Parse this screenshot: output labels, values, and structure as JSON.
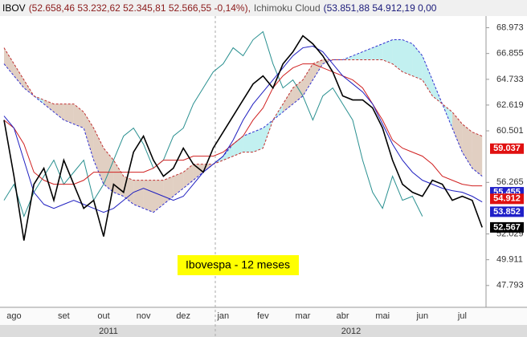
{
  "chart_data": {
    "type": "line",
    "header": {
      "symbol": "IBOV",
      "ohlc": "(52.658,46  53.232,62  52.345,81  52.566,55  -0,14%),",
      "study": "Ichimoku Cloud",
      "study_values": "(53.851,88  54.912,19  0,00"
    },
    "annotation": "Ibovespa - 12 meses",
    "years": [
      "2011",
      "2012"
    ],
    "categories": [
      null,
      "ago",
      null,
      null,
      null,
      null,
      "set",
      null,
      null,
      null,
      "out",
      null,
      null,
      null,
      "nov",
      null,
      null,
      null,
      "dez",
      null,
      null,
      null,
      "jan",
      null,
      null,
      null,
      "fev",
      null,
      null,
      null,
      "mar",
      null,
      null,
      null,
      "abr",
      null,
      null,
      null,
      "mai",
      null,
      null,
      null,
      "jun",
      null,
      null,
      null,
      "jul",
      null,
      null
    ],
    "ylim": [
      46000,
      69800
    ],
    "yticks": [
      {
        "value": 68973,
        "label": "68.973"
      },
      {
        "value": 66855,
        "label": "66.855"
      },
      {
        "value": 64733,
        "label": "64.733"
      },
      {
        "value": 62619,
        "label": "62.619"
      },
      {
        "value": 60501,
        "label": "60.501"
      },
      {
        "value": 56265,
        "label": "56.265"
      },
      {
        "value": 52029,
        "label": "52.029"
      },
      {
        "value": 49911,
        "label": "49.911"
      },
      {
        "value": 47793,
        "label": "47.793"
      }
    ],
    "grid": false,
    "cloud": {
      "colors": [
        "#8fe3e3",
        "#c8a890"
      ]
    },
    "series": [
      {
        "color": "#2a9090",
        "dash": false,
        "values": [
          54792,
          56111,
          53473,
          55452,
          56771,
          58090,
          56111,
          57101,
          58090,
          54792,
          56111,
          58090,
          60069,
          60728,
          59409,
          57431,
          58090,
          60069,
          60728,
          62707,
          64026,
          65346,
          66005,
          67324,
          66665,
          67984,
          68644,
          66005,
          64026,
          64686,
          63367,
          61388,
          63367,
          64026,
          62707,
          61388,
          58090,
          55452,
          54132,
          56771,
          54792,
          55122,
          53473,
          null,
          null,
          null,
          null,
          null,
          null
        ]
      },
      {
        "color": "#3030d0",
        "dash": true,
        "values": [
          66005,
          65016,
          64026,
          63367,
          62707,
          62048,
          61388,
          61058,
          60728,
          58090,
          56111,
          55452,
          55122,
          54462,
          54132,
          53803,
          54462,
          55122,
          55781,
          56441,
          57101,
          57760,
          58420,
          59409,
          60069,
          60399,
          60728,
          61388,
          62048,
          62707,
          63367,
          64686,
          66005,
          66335,
          66335,
          66665,
          66994,
          67324,
          67654,
          67984,
          67984,
          67654,
          66665,
          64686,
          62707,
          60728,
          58750,
          57431,
          56771
        ]
      },
      {
        "color": "#c03030",
        "dash": true,
        "values": [
          67324,
          66005,
          64686,
          63367,
          63037,
          62707,
          62707,
          62707,
          62048,
          60728,
          59079,
          58090,
          56771,
          56441,
          56441,
          56441,
          56441,
          56771,
          57101,
          57760,
          57760,
          57760,
          58090,
          58420,
          58750,
          58750,
          59079,
          61388,
          62707,
          64026,
          64686,
          66005,
          66335,
          66335,
          66335,
          66335,
          66335,
          66335,
          66335,
          66005,
          65346,
          65016,
          64686,
          63367,
          62707,
          62048,
          61058,
          60399,
          60069
        ]
      },
      {
        "color": "#d02020",
        "dash": false,
        "values": [
          61388,
          60728,
          59409,
          57101,
          56441,
          56111,
          56111,
          56111,
          56441,
          57101,
          57101,
          57101,
          57101,
          57101,
          57101,
          57431,
          58090,
          58090,
          58090,
          58420,
          58420,
          58420,
          58750,
          59409,
          60069,
          61388,
          62377,
          64026,
          65016,
          65675,
          66005,
          66005,
          65675,
          65346,
          65016,
          64686,
          64026,
          62707,
          61388,
          59739,
          59079,
          58750,
          58420,
          57760,
          56771,
          56441,
          56111,
          55979,
          55979
        ]
      },
      {
        "color": "#1f1fc0",
        "dash": false,
        "values": [
          61718,
          60728,
          58090,
          55452,
          54462,
          54132,
          54462,
          54792,
          54462,
          54132,
          53803,
          54132,
          54792,
          55452,
          55781,
          55452,
          55122,
          54792,
          55122,
          56111,
          57101,
          57760,
          58420,
          59739,
          61388,
          62707,
          63697,
          64686,
          65675,
          66665,
          67324,
          67456,
          66994,
          66005,
          65016,
          64356,
          63697,
          62707,
          61058,
          59409,
          58090,
          57101,
          56441,
          56111,
          55781,
          55584,
          55452,
          55122,
          54660
        ]
      },
      {
        "color": "#000000",
        "dash": false,
        "values": [
          61388,
          56770,
          51490,
          56110,
          57430,
          54790,
          58090,
          56110,
          54130,
          54790,
          51820,
          56110,
          55450,
          58750,
          60070,
          58090,
          56770,
          57430,
          59080,
          57760,
          57100,
          59080,
          60400,
          61720,
          63040,
          64350,
          65010,
          64020,
          66000,
          66990,
          68310,
          67650,
          66660,
          65340,
          63370,
          63040,
          63040,
          62380,
          60730,
          58090,
          56110,
          55450,
          55120,
          56440,
          56110,
          54790,
          55120,
          54790,
          52567
        ]
      }
    ],
    "price_tags": [
      {
        "value": 59037,
        "label": "59.037",
        "color": "#e01010"
      },
      {
        "value": 55455,
        "label": "55.455",
        "color": "#2020c8"
      },
      {
        "value": 54912,
        "label": "54.912",
        "color": "#e01010"
      },
      {
        "value": 53852,
        "label": "53.852",
        "color": "#2020c8"
      },
      {
        "value": 52567,
        "label": "52.567",
        "color": "#000000"
      }
    ]
  }
}
